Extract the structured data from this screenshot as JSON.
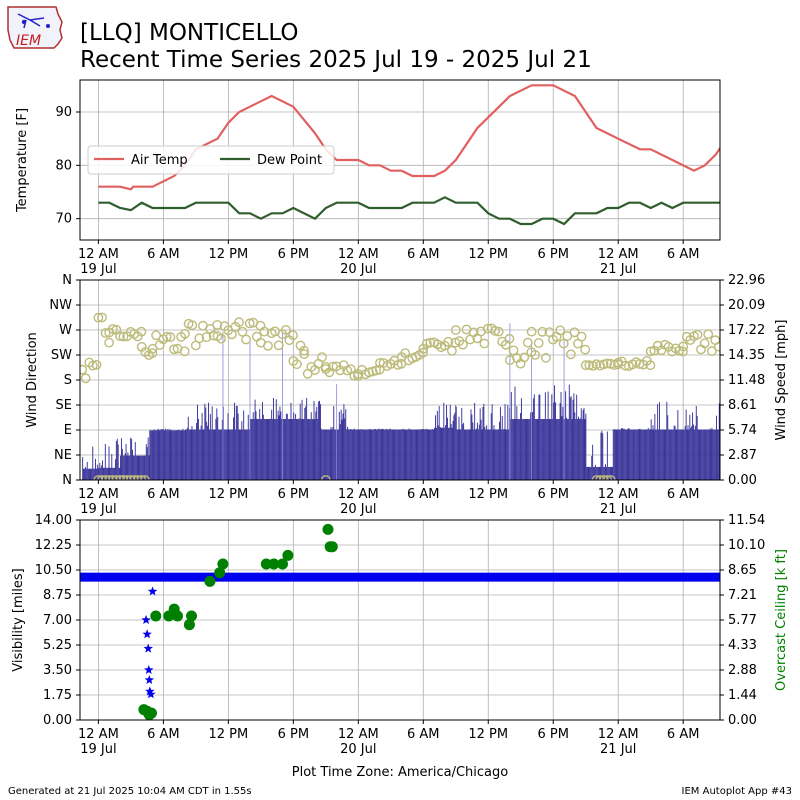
{
  "header": {
    "title_line1": "[LLQ] MONTICELLO",
    "title_line2": "Recent Time Series 2025 Jul 19 - 2025 Jul 21",
    "logo_text": "IEM"
  },
  "footer": {
    "generated": "Generated at 21 Jul 2025 10:04 AM CDT in 1.55s",
    "app": "IEM Autoplot App #43",
    "xlabel": "Plot Time Zone: America/Chicago"
  },
  "colors": {
    "air_temp": "#e06060",
    "dew_point": "#2e5e2e",
    "wind_speed": "#3a3599",
    "wind_dir": "#bdbb7a",
    "visibility": "#0000ee",
    "ceiling": "#008000",
    "grid": "#b0b0b0"
  },
  "chart_data": [
    {
      "type": "line",
      "title": "",
      "ylabel": "Temperature [F]",
      "ylim": [
        66,
        96
      ],
      "yticks": [
        "70",
        "80",
        "90"
      ],
      "xticks": [
        "12 AM\n19 Jul",
        "6 AM",
        "12 PM",
        "6 PM",
        "12 AM\n20 Jul",
        "6 AM",
        "12 PM",
        "6 PM",
        "12 AM\n21 Jul",
        "6 AM"
      ],
      "x_unit": "hours since 2025-07-19 00:00 CDT",
      "xlim": [
        -1.7,
        57.4
      ],
      "grid": true,
      "legend": "upper-left",
      "series": [
        {
          "name": "Air Temp",
          "points": [
            [
              0,
              76
            ],
            [
              1,
              76
            ],
            [
              2,
              76
            ],
            [
              3,
              75.5
            ],
            [
              3.2,
              76
            ],
            [
              5,
              76
            ],
            [
              6,
              77
            ],
            [
              7,
              78
            ],
            [
              8,
              80
            ],
            [
              9,
              83
            ],
            [
              10,
              84
            ],
            [
              11,
              85
            ],
            [
              12,
              88
            ],
            [
              13,
              90
            ],
            [
              15,
              92
            ],
            [
              16,
              93
            ],
            [
              18,
              91
            ],
            [
              20,
              86
            ],
            [
              21,
              83
            ],
            [
              22,
              81
            ],
            [
              23,
              81
            ],
            [
              24,
              81
            ],
            [
              25,
              80
            ],
            [
              26,
              80
            ],
            [
              27,
              79
            ],
            [
              28,
              79
            ],
            [
              29,
              78
            ],
            [
              31,
              78
            ],
            [
              32,
              79
            ],
            [
              33,
              81
            ],
            [
              34,
              84
            ],
            [
              35,
              87
            ],
            [
              37,
              91
            ],
            [
              38,
              93
            ],
            [
              40,
              95
            ],
            [
              42,
              95
            ],
            [
              44,
              93
            ],
            [
              46,
              87
            ],
            [
              48,
              85
            ],
            [
              50,
              83
            ],
            [
              51,
              83
            ],
            [
              53,
              81
            ],
            [
              55,
              79
            ],
            [
              56,
              80
            ],
            [
              57,
              82
            ],
            [
              58,
              85
            ],
            [
              59,
              87
            ]
          ]
        },
        {
          "name": "Dew Point",
          "points": [
            [
              0,
              73
            ],
            [
              1,
              73
            ],
            [
              2,
              72
            ],
            [
              3,
              71.6
            ],
            [
              4,
              73
            ],
            [
              5,
              72
            ],
            [
              8,
              72
            ],
            [
              9,
              73
            ],
            [
              12,
              73
            ],
            [
              13,
              71
            ],
            [
              14,
              71
            ],
            [
              15,
              70
            ],
            [
              16,
              71
            ],
            [
              17,
              71
            ],
            [
              18,
              72
            ],
            [
              20,
              70
            ],
            [
              21,
              72
            ],
            [
              22,
              73
            ],
            [
              24,
              73
            ],
            [
              25,
              72
            ],
            [
              28,
              72
            ],
            [
              29,
              73
            ],
            [
              31,
              73
            ],
            [
              32,
              74
            ],
            [
              33,
              73
            ],
            [
              35,
              73
            ],
            [
              36,
              71
            ],
            [
              37,
              70
            ],
            [
              38,
              70
            ],
            [
              39,
              69
            ],
            [
              40,
              69
            ],
            [
              41,
              70
            ],
            [
              42,
              70
            ],
            [
              43,
              69
            ],
            [
              44,
              71
            ],
            [
              46,
              71
            ],
            [
              47,
              72
            ],
            [
              48,
              72
            ],
            [
              49,
              73
            ],
            [
              50,
              73
            ],
            [
              51,
              72
            ],
            [
              52,
              73
            ],
            [
              53,
              72
            ],
            [
              54,
              73
            ],
            [
              59,
              73
            ]
          ]
        }
      ]
    },
    {
      "type": "bar",
      "title": "",
      "ylabel_left": "Wind Direction",
      "ylabel_right": "Wind Speed [mph]",
      "left_ticks": [
        "N",
        "NE",
        "E",
        "SE",
        "S",
        "SW",
        "W",
        "NW",
        "N"
      ],
      "right_ticks": [
        "0.00",
        "2.87",
        "5.74",
        "8.61",
        "11.48",
        "14.35",
        "17.22",
        "20.09",
        "22.96"
      ],
      "ylim_left": [
        0,
        360
      ],
      "ylim_right": [
        0,
        22.96
      ],
      "grid": true,
      "wind_speed_segments": [
        [
          -1.5,
          0,
          1.3,
          4
        ],
        [
          0,
          2,
          1.4,
          5
        ],
        [
          2,
          4.7,
          2.8,
          5.7
        ],
        [
          4.7,
          8,
          5.7,
          5.9
        ],
        [
          8,
          11.5,
          5.8,
          9
        ],
        [
          11.5,
          14,
          5.8,
          9
        ],
        [
          14,
          20.5,
          7,
          9.5
        ],
        [
          20.5,
          23,
          5.8,
          9
        ],
        [
          23,
          31,
          5.8,
          5.9
        ],
        [
          31,
          33,
          6,
          9
        ],
        [
          33,
          38,
          5.8,
          9
        ],
        [
          38,
          45,
          7,
          11
        ],
        [
          45,
          47.5,
          1.5,
          5.7
        ],
        [
          47.5,
          51,
          5.8,
          6
        ],
        [
          51,
          57.4,
          5.8,
          9
        ]
      ],
      "wind_speed_gusts": [
        [
          11.5,
          17
        ],
        [
          14,
          16
        ],
        [
          17,
          17
        ],
        [
          22,
          11
        ],
        [
          38,
          18
        ],
        [
          40,
          16
        ],
        [
          43,
          16
        ]
      ],
      "wind_dir_segments": [
        [
          -1.5,
          0,
          180,
          225
        ],
        [
          0,
          1,
          240,
          300
        ],
        [
          1,
          4,
          240,
          275
        ],
        [
          4,
          5,
          225,
          245
        ],
        [
          5,
          8,
          230,
          265
        ],
        [
          8,
          11,
          240,
          290
        ],
        [
          11,
          15,
          250,
          285
        ],
        [
          15,
          18,
          240,
          285
        ],
        [
          18,
          19,
          205,
          250
        ],
        [
          19,
          21,
          190,
          230
        ],
        [
          21,
          24,
          185,
          210
        ],
        [
          24,
          26,
          190,
          200
        ],
        [
          26,
          28,
          205,
          215
        ],
        [
          28,
          30,
          215,
          230
        ],
        [
          30,
          33,
          230,
          250
        ],
        [
          33,
          38,
          240,
          275
        ],
        [
          38,
          40,
          205,
          270
        ],
        [
          40,
          45,
          220,
          270
        ],
        [
          45,
          48,
          205,
          210
        ],
        [
          48,
          51,
          205,
          215
        ],
        [
          51,
          54,
          230,
          245
        ],
        [
          54,
          57.4,
          230,
          265
        ]
      ],
      "wind_dir_calm": [
        [
          0,
          4.5
        ],
        [
          21,
          21
        ],
        [
          46,
          47.5
        ]
      ]
    },
    {
      "type": "scatter",
      "title": "",
      "ylabel_left": "Visibility [miles]",
      "ylabel_right": "Overcast Ceiling [k ft]",
      "left_ticks": [
        "0.00",
        "1.75",
        "3.50",
        "5.25",
        "7.00",
        "8.75",
        "10.50",
        "12.25",
        "14.00"
      ],
      "right_ticks": [
        "0.00",
        "1.44",
        "2.88",
        "4.33",
        "5.77",
        "7.21",
        "8.65",
        "10.10",
        "11.54"
      ],
      "ylim_left": [
        0,
        14
      ],
      "ylim_right": [
        0,
        11.54
      ],
      "grid": true,
      "visibility_baseline": 10,
      "visibility_stars": [
        [
          4.4,
          7
        ],
        [
          4.5,
          6
        ],
        [
          4.6,
          5
        ],
        [
          4.65,
          3.5
        ],
        [
          4.7,
          2.8
        ],
        [
          4.75,
          2
        ],
        [
          4.85,
          1.8
        ],
        [
          5.0,
          9
        ]
      ],
      "ceiling_points": [
        [
          4.2,
          0.6
        ],
        [
          4.5,
          0.5
        ],
        [
          4.7,
          0.3
        ],
        [
          4.9,
          0.4
        ],
        [
          5.3,
          6.0
        ],
        [
          6.5,
          6.0
        ],
        [
          7.0,
          6.4
        ],
        [
          7.3,
          6.0
        ],
        [
          8.4,
          5.5
        ],
        [
          8.6,
          6.0
        ],
        [
          10.3,
          8.0
        ],
        [
          11.2,
          8.5
        ],
        [
          11.5,
          9.0
        ],
        [
          15.5,
          9.0
        ],
        [
          16.2,
          9.0
        ],
        [
          17,
          9.0
        ],
        [
          17.5,
          9.5
        ],
        [
          21.2,
          11.0
        ],
        [
          21.4,
          10.0
        ],
        [
          21.6,
          10.0
        ]
      ]
    }
  ]
}
